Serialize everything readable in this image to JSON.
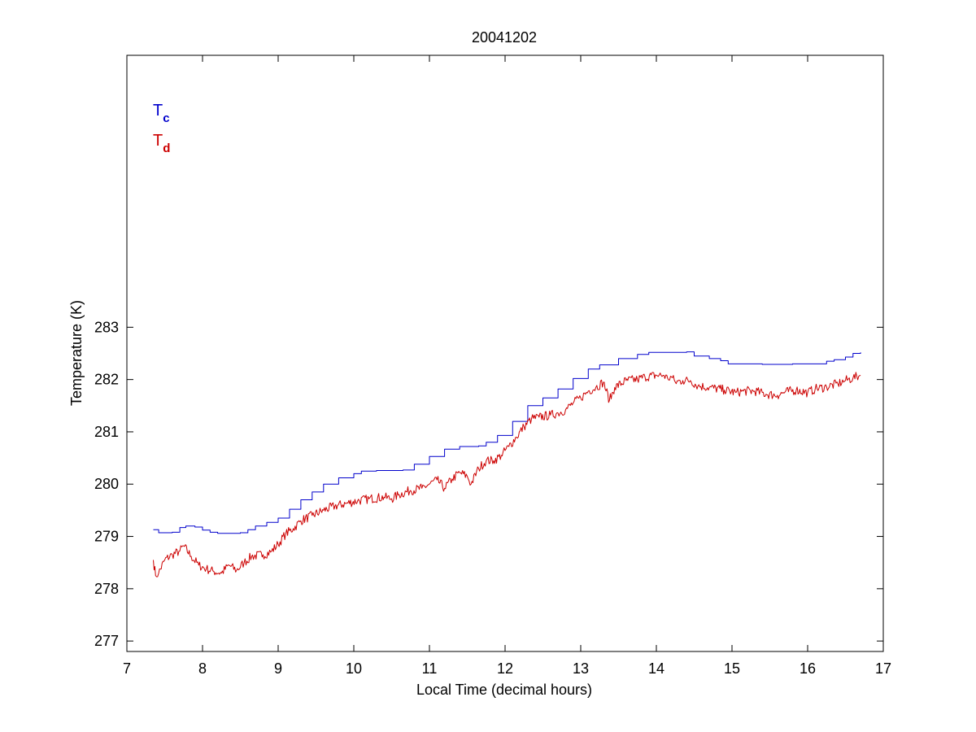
{
  "chart_data": {
    "type": "line",
    "title": "20041202",
    "xlabel": "Local Time (decimal hours)",
    "ylabel": "Temperature (K)",
    "xlim": [
      7,
      17
    ],
    "ylim": [
      276.8,
      288.2
    ],
    "xticks": [
      "7",
      "8",
      "9",
      "10",
      "11",
      "12",
      "13",
      "14",
      "15",
      "16",
      "17"
    ],
    "yticks": [
      "277",
      "278",
      "279",
      "280",
      "281",
      "282",
      "283"
    ],
    "grid": false,
    "legend": {
      "placement": "top-left",
      "entries": [
        {
          "main": "T",
          "sub": "c",
          "color": "#0000cc"
        },
        {
          "main": "T",
          "sub": "d",
          "color": "#cc0000"
        }
      ]
    },
    "series": [
      {
        "key": "Tc",
        "color": "#0000cc",
        "step": true,
        "points": [
          [
            7.35,
            279.13
          ],
          [
            7.42,
            279.07
          ],
          [
            7.6,
            279.08
          ],
          [
            7.7,
            279.17
          ],
          [
            7.78,
            279.2
          ],
          [
            7.9,
            279.18
          ],
          [
            8.0,
            279.12
          ],
          [
            8.1,
            279.08
          ],
          [
            8.2,
            279.06
          ],
          [
            8.5,
            279.07
          ],
          [
            8.6,
            279.13
          ],
          [
            8.7,
            279.2
          ],
          [
            8.85,
            279.27
          ],
          [
            9.0,
            279.35
          ],
          [
            9.15,
            279.52
          ],
          [
            9.3,
            279.7
          ],
          [
            9.45,
            279.85
          ],
          [
            9.6,
            280.0
          ],
          [
            9.8,
            280.12
          ],
          [
            10.0,
            280.2
          ],
          [
            10.1,
            280.25
          ],
          [
            10.3,
            280.26
          ],
          [
            10.65,
            280.27
          ],
          [
            10.8,
            280.38
          ],
          [
            11.0,
            280.53
          ],
          [
            11.2,
            280.67
          ],
          [
            11.4,
            280.72
          ],
          [
            11.65,
            280.73
          ],
          [
            11.75,
            280.8
          ],
          [
            11.9,
            280.93
          ],
          [
            12.1,
            281.2
          ],
          [
            12.3,
            281.5
          ],
          [
            12.5,
            281.65
          ],
          [
            12.7,
            281.82
          ],
          [
            12.9,
            282.02
          ],
          [
            13.1,
            282.2
          ],
          [
            13.25,
            282.28
          ],
          [
            13.5,
            282.4
          ],
          [
            13.75,
            282.48
          ],
          [
            13.9,
            282.52
          ],
          [
            14.4,
            282.53
          ],
          [
            14.5,
            282.45
          ],
          [
            14.7,
            282.4
          ],
          [
            14.85,
            282.36
          ],
          [
            14.95,
            282.3
          ],
          [
            15.2,
            282.3
          ],
          [
            15.4,
            282.29
          ],
          [
            15.8,
            282.3
          ],
          [
            16.15,
            282.3
          ],
          [
            16.25,
            282.35
          ],
          [
            16.35,
            282.38
          ],
          [
            16.5,
            282.43
          ],
          [
            16.6,
            282.5
          ],
          [
            16.7,
            282.52
          ]
        ]
      },
      {
        "key": "Td",
        "color": "#cc0000",
        "noise": 0.09,
        "points": [
          [
            7.35,
            278.55
          ],
          [
            7.38,
            278.25
          ],
          [
            7.42,
            278.3
          ],
          [
            7.5,
            278.55
          ],
          [
            7.6,
            278.65
          ],
          [
            7.7,
            278.72
          ],
          [
            7.75,
            278.82
          ],
          [
            7.85,
            278.62
          ],
          [
            7.95,
            278.45
          ],
          [
            8.05,
            278.38
          ],
          [
            8.15,
            278.33
          ],
          [
            8.25,
            278.3
          ],
          [
            8.35,
            278.45
          ],
          [
            8.45,
            278.35
          ],
          [
            8.55,
            278.5
          ],
          [
            8.65,
            278.62
          ],
          [
            8.8,
            278.65
          ],
          [
            8.9,
            278.7
          ],
          [
            9.0,
            278.85
          ],
          [
            9.1,
            279.05
          ],
          [
            9.2,
            279.15
          ],
          [
            9.3,
            279.3
          ],
          [
            9.45,
            279.4
          ],
          [
            9.6,
            279.5
          ],
          [
            9.75,
            279.58
          ],
          [
            9.9,
            279.63
          ],
          [
            10.05,
            279.68
          ],
          [
            10.2,
            279.72
          ],
          [
            10.4,
            279.75
          ],
          [
            10.5,
            279.72
          ],
          [
            10.6,
            279.8
          ],
          [
            10.75,
            279.88
          ],
          [
            10.9,
            279.92
          ],
          [
            11.0,
            280.0
          ],
          [
            11.1,
            280.08
          ],
          [
            11.2,
            279.92
          ],
          [
            11.3,
            280.1
          ],
          [
            11.4,
            280.22
          ],
          [
            11.5,
            280.15
          ],
          [
            11.55,
            280.0
          ],
          [
            11.65,
            280.3
          ],
          [
            11.75,
            280.45
          ],
          [
            11.85,
            280.45
          ],
          [
            11.95,
            280.55
          ],
          [
            12.05,
            280.72
          ],
          [
            12.15,
            280.9
          ],
          [
            12.25,
            281.1
          ],
          [
            12.35,
            281.25
          ],
          [
            12.45,
            281.28
          ],
          [
            12.6,
            281.32
          ],
          [
            12.7,
            281.36
          ],
          [
            12.8,
            281.42
          ],
          [
            12.9,
            281.55
          ],
          [
            13.0,
            281.65
          ],
          [
            13.1,
            281.78
          ],
          [
            13.2,
            281.85
          ],
          [
            13.3,
            281.95
          ],
          [
            13.38,
            281.6
          ],
          [
            13.45,
            281.85
          ],
          [
            13.6,
            281.98
          ],
          [
            13.75,
            282.0
          ],
          [
            13.85,
            282.05
          ],
          [
            14.0,
            282.08
          ],
          [
            14.1,
            282.08
          ],
          [
            14.15,
            282.02
          ],
          [
            14.2,
            282.05
          ],
          [
            14.25,
            281.95
          ],
          [
            14.35,
            281.98
          ],
          [
            14.45,
            281.98
          ],
          [
            14.55,
            281.88
          ],
          [
            14.7,
            281.85
          ],
          [
            14.9,
            281.8
          ],
          [
            15.05,
            281.75
          ],
          [
            15.15,
            281.78
          ],
          [
            15.3,
            281.78
          ],
          [
            15.45,
            281.72
          ],
          [
            15.6,
            281.7
          ],
          [
            15.7,
            281.76
          ],
          [
            15.85,
            281.8
          ],
          [
            16.0,
            281.75
          ],
          [
            16.1,
            281.82
          ],
          [
            16.25,
            281.86
          ],
          [
            16.4,
            281.92
          ],
          [
            16.5,
            281.98
          ],
          [
            16.6,
            282.03
          ],
          [
            16.7,
            282.08
          ]
        ]
      }
    ]
  }
}
